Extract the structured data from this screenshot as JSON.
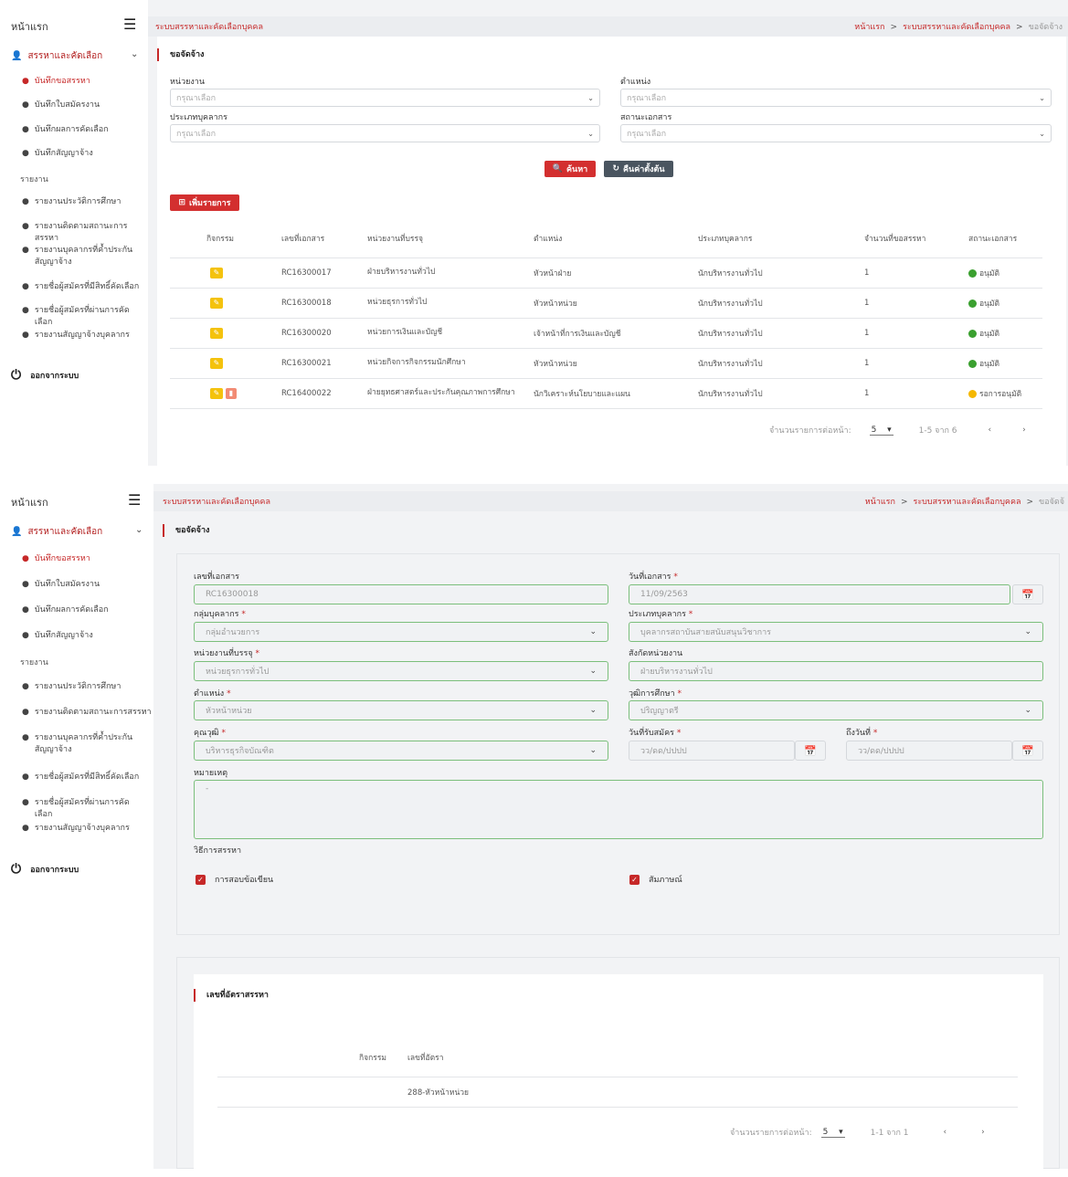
{
  "sidebar": {
    "home": "หน้าแรก",
    "group": "สรรหาและคัดเลือก",
    "items": [
      "บันทึกขอสรรหา",
      "บันทึกใบสมัครงาน",
      "บันทึกผลการคัดเลือก",
      "บันทึกสัญญาจ้าง"
    ],
    "report_header": "รายงาน",
    "reports": [
      "รายงานประวัติการศึกษา",
      "รายงานติดตามสถานะการสรรหา",
      "รายงานบุคลากรที่ค้ำประกันสัญญาจ้าง",
      "รายชื่อผู้สมัครที่มีสิทธิ์คัดเลือก",
      "รายชื่อผู้สมัครที่ผ่านการคัดเลือก",
      "รายงานสัญญาจ้างบุคลากร"
    ],
    "logout": "ออกจากระบบ"
  },
  "topbar": {
    "system": "ระบบสรรหาและคัดเลือกบุคคล",
    "crumb_home": "หน้าแรก",
    "crumb_system": "ระบบสรรหาและคัดเลือกบุคคล",
    "crumb_current": "ขอจัดจ้าง",
    "crumb_current_cut": "ขอจัดจ้"
  },
  "list_page": {
    "section_title": "ขอจัดจ้าง",
    "filters": {
      "unit_label": "หน่วยงาน",
      "position_label": "ตำแหน่ง",
      "staff_type_label": "ประเภทบุคลากร",
      "doc_status_label": "สถานะเอกสาร",
      "placeholder": "กรุณาเลือก"
    },
    "search_btn": "ค้นหา",
    "reset_btn": "คืนค่าตั้งต้น",
    "add_btn": "เพิ่มรายการ",
    "columns": [
      "กิจกรรม",
      "เลขที่เอกสาร",
      "หน่วยงานที่บรรจุ",
      "ตำแหน่ง",
      "ประเภทบุคลากร",
      "จำนวนที่ขอสรรหา",
      "สถานะเอกสาร"
    ],
    "rows": [
      {
        "doc": "RC16300017",
        "unit": "ฝ่ายบริหารงานทั่วไป",
        "position": "หัวหน้าฝ่าย",
        "type": "นักบริหารงานทั่วไป",
        "count": "1",
        "status": "อนุมัติ",
        "status_color": "#3aa02f",
        "deletable": false
      },
      {
        "doc": "RC16300018",
        "unit": "หน่วยธุรการทั่วไป",
        "position": "หัวหน้าหน่วย",
        "type": "นักบริหารงานทั่วไป",
        "count": "1",
        "status": "อนุมัติ",
        "status_color": "#3aa02f",
        "deletable": false
      },
      {
        "doc": "RC16300020",
        "unit": "หน่วยการเงินและบัญชี",
        "position": "เจ้าหน้าที่การเงินและบัญชี",
        "type": "นักบริหารงานทั่วไป",
        "count": "1",
        "status": "อนุมัติ",
        "status_color": "#3aa02f",
        "deletable": false
      },
      {
        "doc": "RC16300021",
        "unit": "หน่วยกิจการกิจกรรมนักศึกษา",
        "position": "หัวหน้าหน่วย",
        "type": "นักบริหารงานทั่วไป",
        "count": "1",
        "status": "อนุมัติ",
        "status_color": "#3aa02f",
        "deletable": false
      },
      {
        "doc": "RC16400022",
        "unit": "ฝ่ายยุทธศาสตร์และประกันคุณภาพการศึกษา",
        "position": "นักวิเคราะห์นโยบายและแผน",
        "type": "นักบริหารงานทั่วไป",
        "count": "1",
        "status": "รอการอนุมัติ",
        "status_color": "#f5b800",
        "deletable": true
      }
    ],
    "pager": {
      "per_page_label": "จำนวนรายการต่อหน้า:",
      "per_page": "5",
      "range": "1-5 จาก 6"
    }
  },
  "form_page": {
    "section_title": "ขอจัดจ้าง",
    "doc_no_label": "เลขที่เอกสาร",
    "doc_no": "RC16300018",
    "doc_date_label": "วันที่เอกสาร",
    "doc_date": "11/09/2563",
    "staff_group_label": "กลุ่มบุคลากร",
    "staff_group": "กลุ่มอำนวยการ",
    "staff_type_label": "ประเภทบุคลากร",
    "staff_type": "บุคลากรสถาบันสายสนับสนุนวิชาการ",
    "unit_label": "หน่วยงานที่บรรจุ",
    "unit": "หน่วยธุรการทั่วไป",
    "affil_label": "สังกัดหน่วยงาน",
    "affil": "ฝ่ายบริหารงานทั่วไป",
    "position_label": "ตำแหน่ง",
    "position": "หัวหน้าหน่วย",
    "education_label": "วุฒิการศึกษา",
    "education": "ปริญญาตรี",
    "qualification_label": "คุณวุฒิ",
    "qualification": "บริหารธุรกิจบัณฑิต",
    "apply_from_label": "วันที่รับสมัคร",
    "apply_to_label": "ถึงวันที่",
    "date_placeholder": "วว/ดด/ปปปป",
    "remark_label": "หมายเหตุ",
    "remark": "-",
    "method_label": "วิธีการสรรหา",
    "method_written": "การสอบข้อเขียน",
    "method_interview": "สัมภาษณ์",
    "rate_title": "เลขที่อัตราสรรหา",
    "rate_columns": [
      "กิจกรรม",
      "เลขที่อัตรา"
    ],
    "rate_rows": [
      "288-หัวหน้าหน่วย"
    ],
    "pager": {
      "per_page_label": "จำนวนรายการต่อหน้า:",
      "per_page": "5",
      "range": "1-1 จาก 1"
    }
  }
}
